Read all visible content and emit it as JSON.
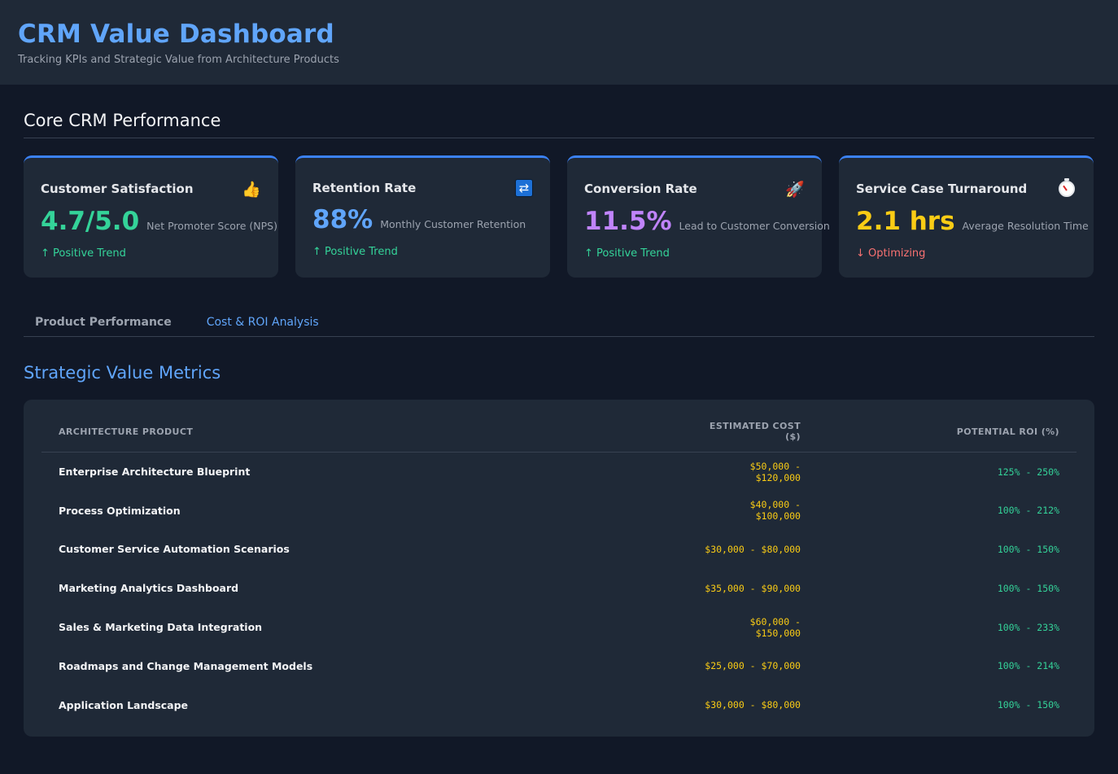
{
  "header": {
    "title": "CRM Value Dashboard",
    "subtitle": "Tracking KPIs and Strategic Value from Architecture Products"
  },
  "core_section": {
    "title": "Core CRM Performance"
  },
  "kpis": [
    {
      "label": "Customer Satisfaction",
      "icon": "thumbs-up-icon",
      "value": "4.7/5.0",
      "desc": "Net Promoter Score (NPS)",
      "trend": "↑ Positive Trend",
      "trend_dir": "up",
      "value_color": "#34d399"
    },
    {
      "label": "Retention Rate",
      "icon": "refresh-icon",
      "value": "88%",
      "desc": "Monthly Customer Retention",
      "trend": "↑ Positive Trend",
      "trend_dir": "up",
      "value_color": "#60a5fa"
    },
    {
      "label": "Conversion Rate",
      "icon": "rocket-icon",
      "value": "11.5%",
      "desc": "Lead to Customer Conversion",
      "trend": "↑ Positive Trend",
      "trend_dir": "up",
      "value_color": "#c084fc"
    },
    {
      "label": "Service Case Turnaround",
      "icon": "stopwatch-icon",
      "value": "2.1 hrs",
      "desc": "Average Resolution Time",
      "trend": "↓ Optimizing",
      "trend_dir": "down",
      "value_color": "#facc15"
    }
  ],
  "tabs": [
    {
      "label": "Product Performance",
      "active": false
    },
    {
      "label": "Cost & ROI Analysis",
      "active": true
    }
  ],
  "metrics": {
    "title": "Strategic Value Metrics",
    "columns": [
      "ARCHITECTURE PRODUCT",
      "ESTIMATED COST ($)",
      "POTENTIAL ROI (%)"
    ],
    "rows": [
      {
        "product": "Enterprise Architecture Blueprint",
        "cost": "$50,000 - $120,000",
        "roi": "125% - 250%"
      },
      {
        "product": "Process Optimization",
        "cost": "$40,000 - $100,000",
        "roi": "100% - 212%"
      },
      {
        "product": "Customer Service Automation Scenarios",
        "cost": "$30,000 - $80,000",
        "roi": "100% - 150%"
      },
      {
        "product": "Marketing Analytics Dashboard",
        "cost": "$35,000 - $90,000",
        "roi": "100% - 150%"
      },
      {
        "product": "Sales & Marketing Data Integration",
        "cost": "$60,000 - $150,000",
        "roi": "100% - 233%"
      },
      {
        "product": "Roadmaps and Change Management Models",
        "cost": "$25,000 - $70,000",
        "roi": "100% - 214%"
      },
      {
        "product": "Application Landscape",
        "cost": "$30,000 - $80,000",
        "roi": "100% - 150%"
      }
    ]
  }
}
